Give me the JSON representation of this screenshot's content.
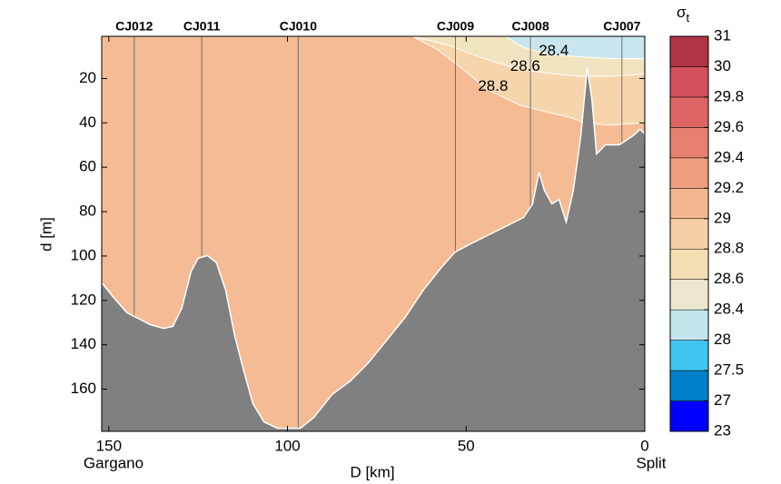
{
  "chart_data": {
    "type": "contour",
    "colorbar_label": {
      "symbol": "σ",
      "subscript": "t"
    },
    "xlabel": "D [km]",
    "ylabel": "d [m]",
    "x_end_labels": [
      "Gargano",
      "Split"
    ],
    "xlim": [
      152,
      0
    ],
    "ylim": [
      1,
      179
    ],
    "xticks": [
      150,
      100,
      50,
      0
    ],
    "yticks": [
      20,
      40,
      60,
      80,
      100,
      120,
      140,
      160
    ],
    "background": "#f5bb94",
    "stations": {
      "names": [
        "CJ012",
        "CJ011",
        "CJ010",
        "CJ009",
        "CJ008",
        "CJ007"
      ],
      "D": [
        142.9,
        124,
        97,
        53,
        32,
        6.4
      ],
      "line_color": "#707070"
    },
    "contours": [
      {
        "level": 28.8,
        "fill": "#f6d5ac",
        "D": [
          65,
          58,
          50,
          44,
          35,
          25,
          20,
          17,
          10,
          0
        ],
        "d": [
          1,
          7,
          17,
          25,
          32,
          36,
          38,
          40,
          41,
          40
        ]
      },
      {
        "level": 28.6,
        "fill": "#f2e3c0",
        "D": [
          65,
          55,
          45,
          35,
          25,
          18,
          10,
          0
        ],
        "d": [
          1,
          5,
          11,
          16,
          18,
          19,
          19,
          18
        ]
      },
      {
        "level": 28.4,
        "fill": "#c9e6ee",
        "D": [
          39,
          34,
          27,
          20,
          10,
          0
        ],
        "d": [
          1,
          6,
          9,
          10,
          11,
          11
        ]
      }
    ],
    "bottom": {
      "color": "#808080",
      "D": [
        152,
        148.7,
        144.9,
        142.3,
        138.5,
        134.7,
        132.1,
        129.6,
        127,
        125,
        122.4,
        119.9,
        117.3,
        114.8,
        112.2,
        109.7,
        106.6,
        102.8,
        96.4,
        92.6,
        87.5,
        82.4,
        77.3,
        72.2,
        67.1,
        62,
        56.9,
        53.1,
        49.2,
        44.1,
        39,
        33.9,
        31.4,
        29.6,
        28.1,
        26,
        24,
        22,
        20,
        17.9,
        16.1,
        14.8,
        13.5,
        11,
        7.1,
        3.3,
        1.3,
        0
      ],
      "d": [
        112,
        118.6,
        125.6,
        127.7,
        130.9,
        132.6,
        131.7,
        123.6,
        107,
        101,
        99.8,
        103,
        115.4,
        135.8,
        152,
        166.5,
        174.7,
        177.6,
        177.6,
        172.7,
        162.4,
        156.3,
        148,
        137.9,
        127.7,
        115.4,
        105.1,
        98.2,
        94.9,
        90.8,
        86.7,
        82.6,
        76.5,
        62.2,
        70.4,
        76.5,
        74.5,
        84.7,
        70.4,
        45.8,
        15.1,
        29.4,
        54,
        49.9,
        49.9,
        45.8,
        42.9,
        44.9
      ]
    },
    "levels": [
      23,
      27,
      27.5,
      28,
      28.4,
      28.6,
      28.8,
      29,
      29.2,
      29.4,
      29.6,
      29.8,
      30,
      31
    ],
    "level_colors": [
      "#0000ff",
      "#0080c8",
      "#40c4f0",
      "#c4e4ee",
      "#ebe7cf",
      "#f3deb4",
      "#f5cfa6",
      "#f4b890",
      "#f09e80",
      "#e88072",
      "#df6464",
      "#d24e5a",
      "#b03444"
    ]
  }
}
